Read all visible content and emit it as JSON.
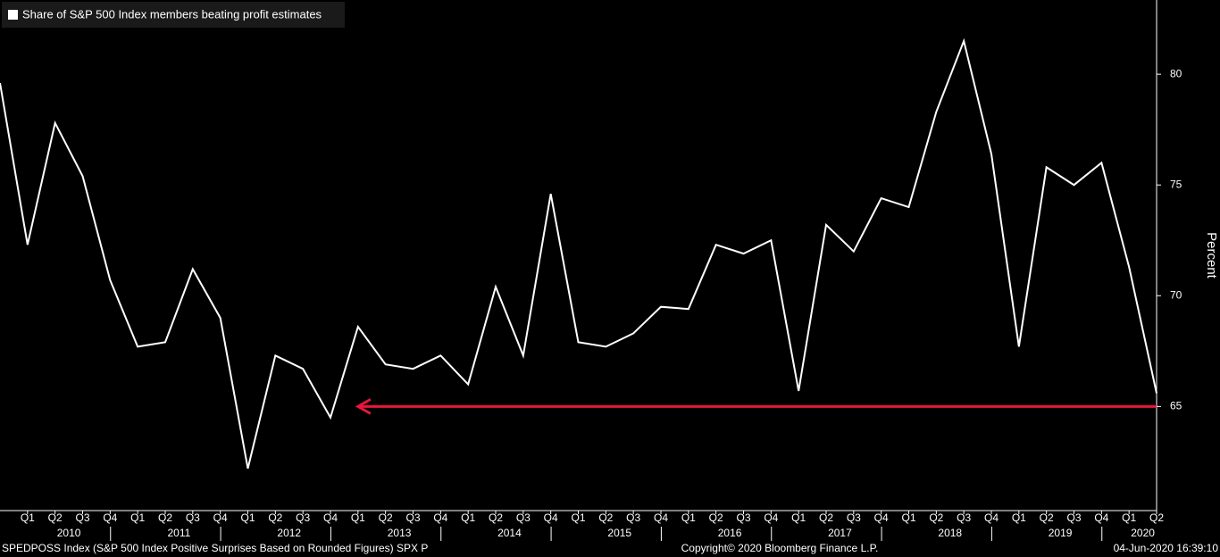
{
  "chart_data": {
    "type": "line",
    "series": [
      {
        "name": "Share of S&P 500 Index members beating profit estimates",
        "color": "#ffffff",
        "values": [
          79.6,
          72.3,
          77.8,
          75.4,
          70.7,
          67.7,
          67.9,
          71.2,
          69.0,
          62.2,
          67.3,
          66.7,
          64.5,
          68.6,
          66.9,
          66.7,
          67.3,
          66.0,
          70.4,
          67.3,
          74.6,
          67.9,
          67.7,
          68.3,
          69.5,
          69.4,
          72.3,
          71.9,
          72.5,
          65.7,
          73.2,
          72.0,
          74.4,
          74.0,
          78.3,
          81.5,
          76.4,
          67.7,
          75.8,
          75.0,
          76.0,
          71.3,
          65.6
        ]
      }
    ],
    "categories": [
      null,
      "Q1",
      "Q2",
      "Q3",
      "Q4",
      "Q1",
      "Q2",
      "Q3",
      "Q4",
      "Q1",
      "Q2",
      "Q3",
      "Q4",
      "Q1",
      "Q2",
      "Q3",
      "Q4",
      "Q1",
      "Q2",
      "Q3",
      "Q4",
      "Q1",
      "Q2",
      "Q3",
      "Q4",
      "Q1",
      "Q2",
      "Q3",
      "Q4",
      "Q1",
      "Q2",
      "Q3",
      "Q4",
      "Q1",
      "Q2",
      "Q3",
      "Q4",
      "Q1",
      "Q2",
      "Q3",
      "Q4",
      "Q1",
      "Q2"
    ],
    "years": [
      "2010",
      "2011",
      "2012",
      "2013",
      "2014",
      "2015",
      "2016",
      "2017",
      "2018",
      "2019",
      "2020"
    ],
    "y_label": "Percent",
    "ylim": [
      60.3,
      83.35
    ],
    "yticks": [
      65,
      70,
      75,
      80
    ],
    "reference_line": {
      "value": 65,
      "color": "#e8173c"
    },
    "footer_left": "SPEDPOSS Index (S&P 500 Index Positive Surprises Based on Rounded Figures) SPX P",
    "footer_center": "Copyright© 2020 Bloomberg Finance L.P.",
    "footer_right": "04-Jun-2020 16:39:10"
  }
}
